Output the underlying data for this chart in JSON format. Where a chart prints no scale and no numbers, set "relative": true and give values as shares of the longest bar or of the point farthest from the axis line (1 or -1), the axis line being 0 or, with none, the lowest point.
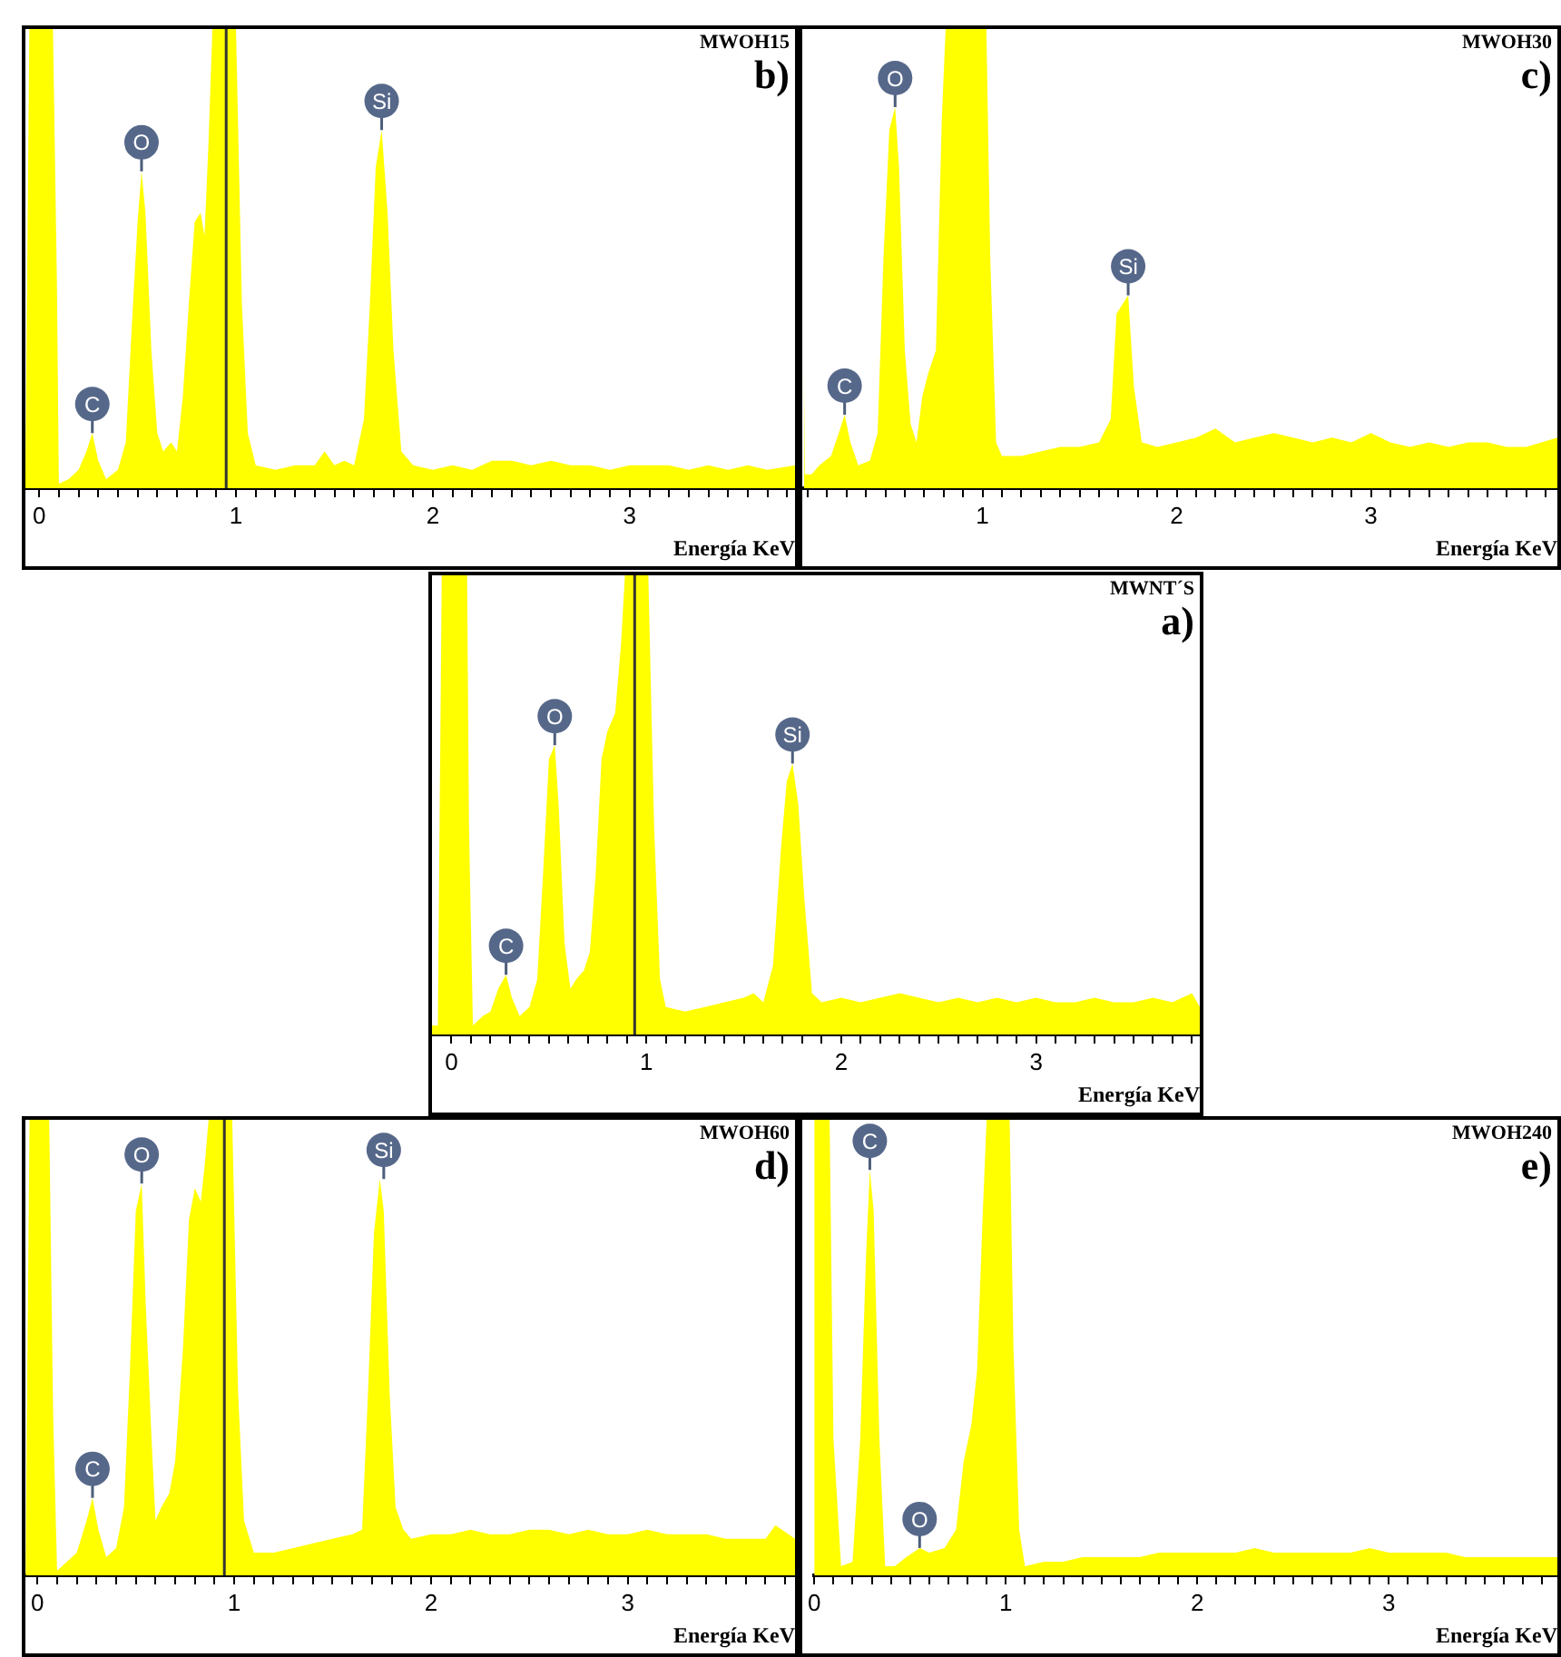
{
  "chart_data": [
    {
      "type": "area",
      "relative": true,
      "title": "MWOH15",
      "subtitle": "b)",
      "xlabel": "Energía KeV",
      "color": "#ffff00",
      "xlim": [
        -0.07,
        3.84
      ],
      "xticks": [
        0,
        {
          "value": 0.1,
          "label": null
        },
        {
          "value": 0.2,
          "label": null
        },
        {
          "value": 0.3,
          "label": null
        },
        {
          "value": 0.4,
          "label": null
        },
        {
          "value": 0.5,
          "label": null
        },
        {
          "value": 0.6,
          "label": null
        },
        {
          "value": 0.7,
          "label": null
        },
        {
          "value": 0.8,
          "label": null
        },
        {
          "value": 0.9,
          "label": null
        },
        1,
        {
          "value": 1.1,
          "label": null
        },
        {
          "value": 1.2,
          "label": null
        },
        {
          "value": 1.3,
          "label": null
        },
        {
          "value": 1.4,
          "label": null
        },
        {
          "value": 1.5,
          "label": null
        },
        {
          "value": 1.6,
          "label": null
        },
        {
          "value": 1.7,
          "label": null
        },
        {
          "value": 1.8,
          "label": null
        },
        {
          "value": 1.9,
          "label": null
        },
        2,
        {
          "value": 2.1,
          "label": null
        },
        {
          "value": 2.2,
          "label": null
        },
        {
          "value": 2.3,
          "label": null
        },
        {
          "value": 2.4,
          "label": null
        },
        {
          "value": 2.5,
          "label": null
        },
        {
          "value": 2.6,
          "label": null
        },
        {
          "value": 2.7,
          "label": null
        },
        {
          "value": 2.8,
          "label": null
        },
        {
          "value": 2.9,
          "label": null
        },
        3,
        {
          "value": 3.1,
          "label": null
        },
        {
          "value": 3.2,
          "label": null
        },
        {
          "value": 3.3,
          "label": null
        },
        {
          "value": 3.4,
          "label": null
        },
        {
          "value": 3.5,
          "label": null
        },
        {
          "value": 3.6,
          "label": null
        },
        {
          "value": 3.7,
          "label": null
        },
        {
          "value": 3.8,
          "label": null
        }
      ],
      "x": [
        -0.07,
        -0.05,
        0.07,
        0.09,
        0.1,
        0.15,
        0.2,
        0.24,
        0.27,
        0.3,
        0.34,
        0.4,
        0.44,
        0.47,
        0.5,
        0.52,
        0.54,
        0.57,
        0.6,
        0.63,
        0.67,
        0.7,
        0.73,
        0.76,
        0.79,
        0.82,
        0.84,
        0.86,
        0.88,
        1.0,
        1.03,
        1.06,
        1.1,
        1.2,
        1.3,
        1.4,
        1.45,
        1.5,
        1.55,
        1.6,
        1.65,
        1.68,
        1.71,
        1.74,
        1.77,
        1.8,
        1.84,
        1.9,
        2.0,
        2.1,
        2.2,
        2.3,
        2.4,
        2.5,
        2.6,
        2.7,
        2.8,
        2.9,
        3.0,
        3.1,
        3.2,
        3.3,
        3.4,
        3.5,
        3.6,
        3.7,
        3.84
      ],
      "values": [
        0.02,
        1,
        1,
        0.45,
        0.01,
        0.02,
        0.04,
        0.08,
        0.12,
        0.06,
        0.02,
        0.04,
        0.1,
        0.35,
        0.58,
        0.69,
        0.6,
        0.3,
        0.12,
        0.08,
        0.1,
        0.08,
        0.2,
        0.4,
        0.58,
        0.6,
        0.55,
        0.75,
        1,
        1,
        0.4,
        0.12,
        0.05,
        0.04,
        0.05,
        0.05,
        0.08,
        0.05,
        0.06,
        0.05,
        0.15,
        0.4,
        0.7,
        0.78,
        0.6,
        0.3,
        0.08,
        0.05,
        0.04,
        0.05,
        0.04,
        0.06,
        0.06,
        0.05,
        0.06,
        0.05,
        0.05,
        0.04,
        0.05,
        0.05,
        0.05,
        0.04,
        0.05,
        0.04,
        0.05,
        0.04,
        0.05
      ],
      "ref_lines": [
        {
          "axis": "x",
          "value": 0.95,
          "color": "#333333"
        }
      ],
      "annotations": [
        {
          "text": "C",
          "x": 0.27,
          "y": 0.12
        },
        {
          "text": "O",
          "x": 0.52,
          "y": 0.69
        },
        {
          "text": "Si",
          "x": 1.74,
          "y": 0.78
        }
      ]
    },
    {
      "type": "area",
      "relative": true,
      "title": "MWOH30",
      "subtitle": "c)",
      "xlabel": "Energía KeV",
      "color": "#ffff00",
      "xlim": [
        0.08,
        3.96
      ],
      "xticks": [
        {
          "value": 0.1,
          "label": null
        },
        {
          "value": 0.2,
          "label": null
        },
        {
          "value": 0.3,
          "label": null
        },
        {
          "value": 0.4,
          "label": null
        },
        {
          "value": 0.5,
          "label": null
        },
        {
          "value": 0.6,
          "label": null
        },
        {
          "value": 0.7,
          "label": null
        },
        {
          "value": 0.8,
          "label": null
        },
        {
          "value": 0.9,
          "label": null
        },
        1,
        {
          "value": 1.1,
          "label": null
        },
        {
          "value": 1.2,
          "label": null
        },
        {
          "value": 1.3,
          "label": null
        },
        {
          "value": 1.4,
          "label": null
        },
        {
          "value": 1.5,
          "label": null
        },
        {
          "value": 1.6,
          "label": null
        },
        {
          "value": 1.7,
          "label": null
        },
        {
          "value": 1.8,
          "label": null
        },
        {
          "value": 1.9,
          "label": null
        },
        2,
        {
          "value": 2.1,
          "label": null
        },
        {
          "value": 2.2,
          "label": null
        },
        {
          "value": 2.3,
          "label": null
        },
        {
          "value": 2.4,
          "label": null
        },
        {
          "value": 2.5,
          "label": null
        },
        {
          "value": 2.6,
          "label": null
        },
        {
          "value": 2.7,
          "label": null
        },
        {
          "value": 2.8,
          "label": null
        },
        {
          "value": 2.9,
          "label": null
        },
        3,
        {
          "value": 3.1,
          "label": null
        },
        {
          "value": 3.2,
          "label": null
        },
        {
          "value": 3.3,
          "label": null
        },
        {
          "value": 3.4,
          "label": null
        },
        {
          "value": 3.5,
          "label": null
        },
        {
          "value": 3.6,
          "label": null
        },
        {
          "value": 3.7,
          "label": null
        },
        {
          "value": 3.8,
          "label": null
        },
        {
          "value": 3.9,
          "label": null
        }
      ],
      "x": [
        0.08,
        0.085,
        0.12,
        0.16,
        0.22,
        0.26,
        0.29,
        0.32,
        0.36,
        0.42,
        0.46,
        0.49,
        0.52,
        0.55,
        0.57,
        0.6,
        0.63,
        0.66,
        0.69,
        0.72,
        0.76,
        0.79,
        0.81,
        1.02,
        1.04,
        1.07,
        1.1,
        1.2,
        1.3,
        1.4,
        1.5,
        1.6,
        1.66,
        1.69,
        1.72,
        1.75,
        1.78,
        1.82,
        1.9,
        2.0,
        2.1,
        2.2,
        2.3,
        2.4,
        2.5,
        2.6,
        2.7,
        2.8,
        2.9,
        3.0,
        3.1,
        3.2,
        3.3,
        3.4,
        3.5,
        3.6,
        3.7,
        3.8,
        3.96
      ],
      "values": [
        0.3,
        0.03,
        0.03,
        0.05,
        0.07,
        0.12,
        0.16,
        0.1,
        0.05,
        0.06,
        0.12,
        0.5,
        0.78,
        0.83,
        0.7,
        0.3,
        0.14,
        0.1,
        0.2,
        0.25,
        0.3,
        0.8,
        1,
        1,
        0.5,
        0.1,
        0.07,
        0.07,
        0.08,
        0.09,
        0.09,
        0.1,
        0.15,
        0.38,
        0.4,
        0.42,
        0.22,
        0.1,
        0.09,
        0.1,
        0.11,
        0.13,
        0.1,
        0.11,
        0.12,
        0.11,
        0.1,
        0.11,
        0.1,
        0.12,
        0.1,
        0.09,
        0.1,
        0.09,
        0.1,
        0.1,
        0.09,
        0.09,
        0.11
      ],
      "annotations": [
        {
          "text": "C",
          "x": 0.29,
          "y": 0.16
        },
        {
          "text": "O",
          "x": 0.55,
          "y": 0.83
        },
        {
          "text": "Si",
          "x": 1.75,
          "y": 0.42
        }
      ]
    },
    {
      "type": "area",
      "relative": true,
      "title": "MWNT´S",
      "subtitle": "a)",
      "xlabel": "Energía KeV",
      "color": "#ffff00",
      "xlim": [
        -0.1,
        3.84
      ],
      "xticks": [
        0,
        {
          "value": 0.1,
          "label": null
        },
        {
          "value": 0.2,
          "label": null
        },
        {
          "value": 0.3,
          "label": null
        },
        {
          "value": 0.4,
          "label": null
        },
        {
          "value": 0.5,
          "label": null
        },
        {
          "value": 0.6,
          "label": null
        },
        {
          "value": 0.7,
          "label": null
        },
        {
          "value": 0.8,
          "label": null
        },
        {
          "value": 0.9,
          "label": null
        },
        1,
        {
          "value": 1.1,
          "label": null
        },
        {
          "value": 1.2,
          "label": null
        },
        {
          "value": 1.3,
          "label": null
        },
        {
          "value": 1.4,
          "label": null
        },
        {
          "value": 1.5,
          "label": null
        },
        {
          "value": 1.6,
          "label": null
        },
        {
          "value": 1.7,
          "label": null
        },
        {
          "value": 1.8,
          "label": null
        },
        {
          "value": 1.9,
          "label": null
        },
        2,
        {
          "value": 2.1,
          "label": null
        },
        {
          "value": 2.2,
          "label": null
        },
        {
          "value": 2.3,
          "label": null
        },
        {
          "value": 2.4,
          "label": null
        },
        {
          "value": 2.5,
          "label": null
        },
        {
          "value": 2.6,
          "label": null
        },
        {
          "value": 2.7,
          "label": null
        },
        {
          "value": 2.8,
          "label": null
        },
        {
          "value": 2.9,
          "label": null
        },
        3,
        {
          "value": 3.1,
          "label": null
        },
        {
          "value": 3.2,
          "label": null
        },
        {
          "value": 3.3,
          "label": null
        },
        {
          "value": 3.4,
          "label": null
        },
        {
          "value": 3.5,
          "label": null
        },
        {
          "value": 3.6,
          "label": null
        },
        {
          "value": 3.7,
          "label": null
        },
        {
          "value": 3.8,
          "label": null
        }
      ],
      "x": [
        -0.1,
        -0.07,
        -0.05,
        0.08,
        0.09,
        0.11,
        0.16,
        0.2,
        0.24,
        0.28,
        0.31,
        0.35,
        0.4,
        0.44,
        0.47,
        0.5,
        0.53,
        0.55,
        0.58,
        0.61,
        0.64,
        0.68,
        0.71,
        0.74,
        0.77,
        0.8,
        0.84,
        0.87,
        0.89,
        1.01,
        1.04,
        1.07,
        1.1,
        1.2,
        1.3,
        1.4,
        1.5,
        1.55,
        1.6,
        1.65,
        1.69,
        1.72,
        1.75,
        1.78,
        1.81,
        1.85,
        1.9,
        2.0,
        2.1,
        2.2,
        2.3,
        2.4,
        2.5,
        2.6,
        2.7,
        2.8,
        2.9,
        3.0,
        3.1,
        3.2,
        3.3,
        3.4,
        3.5,
        3.6,
        3.7,
        3.8,
        3.84
      ],
      "values": [
        0.02,
        0.02,
        1,
        1,
        0.45,
        0.02,
        0.04,
        0.05,
        0.1,
        0.13,
        0.08,
        0.04,
        0.06,
        0.12,
        0.35,
        0.6,
        0.63,
        0.5,
        0.2,
        0.1,
        0.12,
        0.14,
        0.18,
        0.35,
        0.6,
        0.66,
        0.7,
        0.85,
        1,
        1,
        0.45,
        0.12,
        0.06,
        0.05,
        0.06,
        0.07,
        0.08,
        0.09,
        0.07,
        0.15,
        0.4,
        0.55,
        0.59,
        0.5,
        0.3,
        0.09,
        0.07,
        0.08,
        0.07,
        0.08,
        0.09,
        0.08,
        0.07,
        0.08,
        0.07,
        0.08,
        0.07,
        0.08,
        0.07,
        0.07,
        0.08,
        0.07,
        0.07,
        0.08,
        0.07,
        0.09,
        0.06
      ],
      "ref_lines": [
        {
          "axis": "x",
          "value": 0.94,
          "color": "#333333"
        }
      ],
      "annotations": [
        {
          "text": "C",
          "x": 0.28,
          "y": 0.13
        },
        {
          "text": "O",
          "x": 0.53,
          "y": 0.63
        },
        {
          "text": "Si",
          "x": 1.75,
          "y": 0.59
        }
      ]
    },
    {
      "type": "area",
      "relative": true,
      "title": "MWOH60",
      "subtitle": "d)",
      "xlabel": "Energía KeV",
      "color": "#ffff00",
      "xlim": [
        -0.06,
        3.85
      ],
      "xticks": [
        0,
        {
          "value": 0.1,
          "label": null
        },
        {
          "value": 0.2,
          "label": null
        },
        {
          "value": 0.3,
          "label": null
        },
        {
          "value": 0.4,
          "label": null
        },
        {
          "value": 0.5,
          "label": null
        },
        {
          "value": 0.6,
          "label": null
        },
        {
          "value": 0.7,
          "label": null
        },
        {
          "value": 0.8,
          "label": null
        },
        {
          "value": 0.9,
          "label": null
        },
        1,
        {
          "value": 1.1,
          "label": null
        },
        {
          "value": 1.2,
          "label": null
        },
        {
          "value": 1.3,
          "label": null
        },
        {
          "value": 1.4,
          "label": null
        },
        {
          "value": 1.5,
          "label": null
        },
        {
          "value": 1.6,
          "label": null
        },
        {
          "value": 1.7,
          "label": null
        },
        {
          "value": 1.8,
          "label": null
        },
        {
          "value": 1.9,
          "label": null
        },
        2,
        {
          "value": 2.1,
          "label": null
        },
        {
          "value": 2.2,
          "label": null
        },
        {
          "value": 2.3,
          "label": null
        },
        {
          "value": 2.4,
          "label": null
        },
        {
          "value": 2.5,
          "label": null
        },
        {
          "value": 2.6,
          "label": null
        },
        {
          "value": 2.7,
          "label": null
        },
        {
          "value": 2.8,
          "label": null
        },
        {
          "value": 2.9,
          "label": null
        },
        3,
        {
          "value": 3.1,
          "label": null
        },
        {
          "value": 3.2,
          "label": null
        },
        {
          "value": 3.3,
          "label": null
        },
        {
          "value": 3.4,
          "label": null
        },
        {
          "value": 3.5,
          "label": null
        },
        {
          "value": 3.6,
          "label": null
        },
        {
          "value": 3.7,
          "label": null
        },
        {
          "value": 3.8,
          "label": null
        }
      ],
      "x": [
        -0.06,
        -0.04,
        0.06,
        0.08,
        0.1,
        0.15,
        0.2,
        0.25,
        0.28,
        0.31,
        0.35,
        0.4,
        0.44,
        0.47,
        0.5,
        0.53,
        0.55,
        0.58,
        0.6,
        0.63,
        0.67,
        0.7,
        0.74,
        0.77,
        0.8,
        0.83,
        0.85,
        0.87,
        0.89,
        0.99,
        1.02,
        1.05,
        1.1,
        1.2,
        1.3,
        1.4,
        1.5,
        1.6,
        1.65,
        1.68,
        1.71,
        1.74,
        1.76,
        1.79,
        1.82,
        1.86,
        1.9,
        2.0,
        2.1,
        2.2,
        2.3,
        2.4,
        2.5,
        2.6,
        2.7,
        2.8,
        2.9,
        3.0,
        3.1,
        3.2,
        3.3,
        3.4,
        3.5,
        3.6,
        3.7,
        3.75,
        3.85
      ],
      "values": [
        0.02,
        1,
        1,
        0.35,
        0.01,
        0.03,
        0.05,
        0.12,
        0.17,
        0.1,
        0.04,
        0.06,
        0.15,
        0.45,
        0.8,
        0.86,
        0.6,
        0.3,
        0.12,
        0.15,
        0.18,
        0.25,
        0.5,
        0.78,
        0.85,
        0.82,
        0.9,
        1,
        1,
        1,
        0.4,
        0.12,
        0.05,
        0.05,
        0.06,
        0.07,
        0.08,
        0.09,
        0.1,
        0.4,
        0.75,
        0.87,
        0.8,
        0.4,
        0.15,
        0.1,
        0.08,
        0.09,
        0.09,
        0.1,
        0.09,
        0.09,
        0.1,
        0.1,
        0.09,
        0.1,
        0.09,
        0.09,
        0.1,
        0.09,
        0.09,
        0.09,
        0.08,
        0.08,
        0.08,
        0.11,
        0.08
      ],
      "ref_lines": [
        {
          "axis": "x",
          "value": 0.95,
          "color": "#333333"
        }
      ],
      "annotations": [
        {
          "text": "C",
          "x": 0.28,
          "y": 0.17
        },
        {
          "text": "O",
          "x": 0.53,
          "y": 0.86
        },
        {
          "text": "Si",
          "x": 1.76,
          "y": 0.87
        }
      ]
    },
    {
      "type": "area",
      "relative": true,
      "title": "MWOH240",
      "subtitle": "e)",
      "xlabel": "Energía KeV",
      "color": "#ffff00",
      "xlim": [
        0,
        3.88
      ],
      "xticks": [
        0,
        {
          "value": 0.1,
          "label": null
        },
        {
          "value": 0.2,
          "label": null
        },
        {
          "value": 0.3,
          "label": null
        },
        {
          "value": 0.4,
          "label": null
        },
        {
          "value": 0.5,
          "label": null
        },
        {
          "value": 0.6,
          "label": null
        },
        {
          "value": 0.7,
          "label": null
        },
        {
          "value": 0.8,
          "label": null
        },
        {
          "value": 0.9,
          "label": null
        },
        1,
        {
          "value": 1.1,
          "label": null
        },
        {
          "value": 1.2,
          "label": null
        },
        {
          "value": 1.3,
          "label": null
        },
        {
          "value": 1.4,
          "label": null
        },
        {
          "value": 1.5,
          "label": null
        },
        {
          "value": 1.6,
          "label": null
        },
        {
          "value": 1.7,
          "label": null
        },
        {
          "value": 1.8,
          "label": null
        },
        {
          "value": 1.9,
          "label": null
        },
        2,
        {
          "value": 2.1,
          "label": null
        },
        {
          "value": 2.2,
          "label": null
        },
        {
          "value": 2.3,
          "label": null
        },
        {
          "value": 2.4,
          "label": null
        },
        {
          "value": 2.5,
          "label": null
        },
        {
          "value": 2.6,
          "label": null
        },
        {
          "value": 2.7,
          "label": null
        },
        {
          "value": 2.8,
          "label": null
        },
        {
          "value": 2.9,
          "label": null
        },
        3,
        {
          "value": 3.1,
          "label": null
        },
        {
          "value": 3.2,
          "label": null
        },
        {
          "value": 3.3,
          "label": null
        },
        {
          "value": 3.4,
          "label": null
        },
        {
          "value": 3.5,
          "label": null
        },
        {
          "value": 3.6,
          "label": null
        },
        {
          "value": 3.7,
          "label": null
        },
        {
          "value": 3.8,
          "label": null
        }
      ],
      "x": [
        0,
        0.08,
        0.1,
        0.14,
        0.2,
        0.24,
        0.27,
        0.29,
        0.31,
        0.34,
        0.37,
        0.42,
        0.48,
        0.55,
        0.6,
        0.68,
        0.74,
        0.78,
        0.82,
        0.85,
        0.88,
        0.9,
        1.02,
        1.04,
        1.07,
        1.1,
        1.2,
        1.3,
        1.4,
        1.5,
        1.6,
        1.7,
        1.8,
        1.9,
        2.0,
        2.1,
        2.2,
        2.3,
        2.4,
        2.5,
        2.6,
        2.7,
        2.8,
        2.9,
        3.0,
        3.1,
        3.2,
        3.3,
        3.4,
        3.5,
        3.6,
        3.7,
        3.88
      ],
      "values": [
        1,
        1,
        0.3,
        0.02,
        0.03,
        0.3,
        0.7,
        0.89,
        0.8,
        0.3,
        0.02,
        0.02,
        0.04,
        0.06,
        0.05,
        0.06,
        0.1,
        0.25,
        0.33,
        0.45,
        0.8,
        1,
        1,
        0.5,
        0.1,
        0.02,
        0.03,
        0.03,
        0.04,
        0.04,
        0.04,
        0.04,
        0.05,
        0.05,
        0.05,
        0.05,
        0.05,
        0.06,
        0.05,
        0.05,
        0.05,
        0.05,
        0.05,
        0.06,
        0.05,
        0.05,
        0.05,
        0.05,
        0.04,
        0.04,
        0.04,
        0.04,
        0.04
      ],
      "annotations": [
        {
          "text": "C",
          "x": 0.29,
          "y": 0.89
        },
        {
          "text": "O",
          "x": 0.55,
          "y": 0.06
        }
      ]
    }
  ]
}
